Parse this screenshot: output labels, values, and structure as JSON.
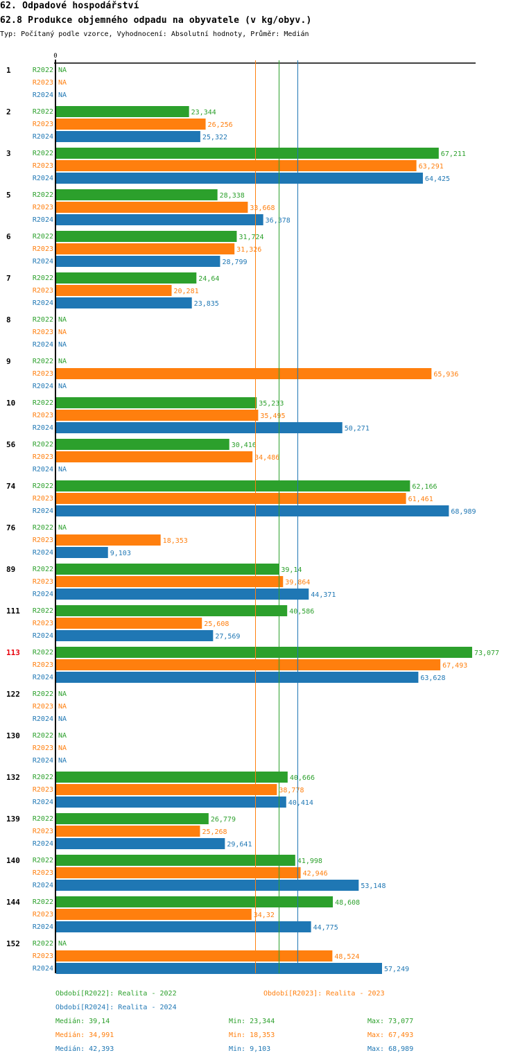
{
  "header": {
    "title": "62. Odpadové hospodářství",
    "subtitle": "62.8 Produkce objemného odpadu na obyvatele (v kg/obyv.)",
    "info": "Typ: Počítaný podle vzorce, Vyhodnocení: Absolutní hodnoty, Průměr: Medián"
  },
  "colors": {
    "R2022": "#2ca02c",
    "R2023": "#ff7f0e",
    "R2024": "#1f77b4",
    "highlight": "#e8000b",
    "axis": "#000000"
  },
  "chart_data": {
    "type": "bar",
    "orientation": "horizontal",
    "title": "62.8 Produkce objemného odpadu na obyvatele (v kg/obyv.)",
    "xlabel": "",
    "ylabel": "",
    "x_tick_labels": [
      "0"
    ],
    "xlim": [
      0,
      73.077
    ],
    "grid": false,
    "na_label": "NA",
    "categories": [
      "1",
      "2",
      "3",
      "5",
      "6",
      "7",
      "8",
      "9",
      "10",
      "56",
      "74",
      "76",
      "89",
      "111",
      "113",
      "122",
      "130",
      "132",
      "139",
      "140",
      "144",
      "152"
    ],
    "highlighted_category": "113",
    "series": [
      {
        "name": "R2022",
        "values": [
          null,
          23.344,
          67.211,
          28.338,
          31.724,
          24.64,
          null,
          null,
          35.233,
          30.416,
          62.166,
          null,
          39.14,
          40.586,
          73.077,
          null,
          null,
          40.666,
          26.779,
          41.998,
          48.608,
          null
        ],
        "labels": [
          "NA",
          "23,344",
          "67,211",
          "28,338",
          "31,724",
          "24,64",
          "NA",
          "NA",
          "35,233",
          "30,416",
          "62,166",
          "NA",
          "39,14",
          "40,586",
          "73,077",
          "NA",
          "NA",
          "40,666",
          "26,779",
          "41,998",
          "48,608",
          "NA"
        ]
      },
      {
        "name": "R2023",
        "values": [
          null,
          26.256,
          63.291,
          33.668,
          31.326,
          20.281,
          null,
          65.936,
          35.495,
          34.486,
          61.461,
          18.353,
          39.864,
          25.608,
          67.493,
          null,
          null,
          38.778,
          25.268,
          42.946,
          34.32,
          48.524
        ],
        "labels": [
          "NA",
          "26,256",
          "63,291",
          "33,668",
          "31,326",
          "20,281",
          "NA",
          "65,936",
          "35,495",
          "34,486",
          "61,461",
          "18,353",
          "39,864",
          "25,608",
          "67,493",
          "NA",
          "NA",
          "38,778",
          "25,268",
          "42,946",
          "34,32",
          "48,524"
        ]
      },
      {
        "name": "R2024",
        "values": [
          null,
          25.322,
          64.425,
          36.378,
          28.799,
          23.835,
          null,
          null,
          50.271,
          null,
          68.989,
          9.103,
          44.371,
          27.569,
          63.628,
          null,
          null,
          40.414,
          29.641,
          53.148,
          44.775,
          57.249
        ],
        "labels": [
          "NA",
          "25,322",
          "64,425",
          "36,378",
          "28,799",
          "23,835",
          "NA",
          "NA",
          "50,271",
          "NA",
          "68,989",
          "9,103",
          "44,371",
          "27,569",
          "63,628",
          "NA",
          "NA",
          "40,414",
          "29,641",
          "53,148",
          "44,775",
          "57,249"
        ]
      }
    ],
    "medians": {
      "R2022": 39.14,
      "R2023": 34.991,
      "R2024": 42.393
    },
    "legend": [
      {
        "series": "R2022",
        "text": "Období[R2022]: Realita - 2022"
      },
      {
        "series": "R2023",
        "text": "Období[R2023]: Realita - 2023"
      },
      {
        "series": "R2024",
        "text": "Období[R2024]: Realita - 2024"
      }
    ],
    "stats": [
      {
        "series": "R2022",
        "median": "Medián: 39,14",
        "min": "Min: 23,344",
        "max": "Max: 73,077"
      },
      {
        "series": "R2023",
        "median": "Medián: 34,991",
        "min": "Min: 18,353",
        "max": "Max: 67,493"
      },
      {
        "series": "R2024",
        "median": "Medián: 42,393",
        "min": "Min: 9,103",
        "max": "Max: 68,989"
      }
    ],
    "legend_position": "bottom"
  }
}
